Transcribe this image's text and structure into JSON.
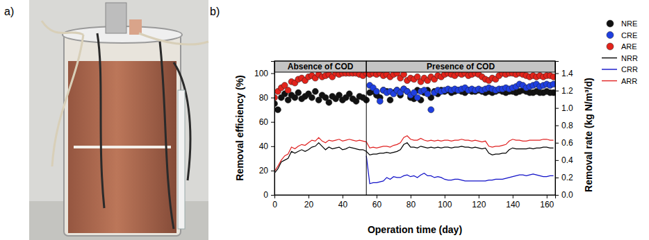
{
  "panel_labels": [
    "a)",
    "b)"
  ],
  "chart_data": {
    "type": "scatter",
    "x_label": "Operation time (day)",
    "y_label": "Removal efficiency (%)",
    "y2_label": "Removal rate (kg N/m³/d)",
    "xlim": [
      0,
      165
    ],
    "xticks": [
      0,
      20,
      40,
      60,
      80,
      100,
      120,
      140,
      160
    ],
    "ylim": [
      0,
      110
    ],
    "yticks": [
      0,
      20,
      40,
      60,
      80,
      100
    ],
    "y2lim": [
      0,
      1.54
    ],
    "y2ticks": [
      {
        "value": 0,
        "label": "0.0"
      },
      0.2,
      0.4,
      0.6,
      0.8,
      {
        "value": 1,
        "label": "1.0"
      },
      1.2,
      1.4
    ],
    "grid": false,
    "legend": "upper right",
    "annotations": [
      {
        "text": "Absence of COD",
        "x": [
          0,
          54
        ]
      },
      {
        "text": "Presence of COD",
        "x": [
          54,
          165
        ]
      }
    ],
    "x": [
      0,
      2,
      4,
      6,
      8,
      10,
      12,
      14,
      16,
      18,
      20,
      22,
      24,
      26,
      28,
      30,
      32,
      34,
      36,
      38,
      40,
      42,
      44,
      46,
      48,
      50,
      52,
      54,
      56,
      58,
      60,
      62,
      64,
      66,
      68,
      70,
      72,
      74,
      76,
      78,
      80,
      82,
      84,
      86,
      88,
      90,
      92,
      94,
      96,
      98,
      100,
      102,
      104,
      106,
      108,
      110,
      112,
      114,
      116,
      118,
      120,
      122,
      124,
      126,
      128,
      130,
      132,
      134,
      136,
      138,
      140,
      142,
      144,
      146,
      148,
      150,
      152,
      154,
      156,
      158,
      160,
      162,
      164
    ],
    "series": [
      {
        "name": "NRE",
        "type": "scatter",
        "marker": "circle",
        "color": "#111111",
        "values": [
          75,
          70,
          80,
          83,
          78,
          82,
          80,
          84,
          79,
          81,
          83,
          80,
          85,
          78,
          82,
          80,
          76,
          81,
          79,
          82,
          78,
          80,
          83,
          79,
          77,
          81,
          80,
          78,
          84,
          85,
          82,
          80,
          86,
          85,
          78,
          84,
          86,
          82,
          87,
          85,
          80,
          79,
          86,
          78,
          84,
          86,
          80,
          85,
          83,
          86,
          85,
          86,
          84,
          85,
          86,
          85,
          84,
          86,
          85,
          85,
          86,
          85,
          84,
          85,
          84,
          85,
          86,
          85,
          84,
          85,
          85,
          84,
          85,
          86,
          85,
          84,
          84,
          85,
          84,
          84,
          85,
          84,
          84
        ]
      },
      {
        "name": "CRE",
        "type": "scatter",
        "marker": "circle",
        "color": "#1f3fe0",
        "values": [
          null,
          null,
          null,
          null,
          null,
          null,
          null,
          null,
          null,
          null,
          null,
          null,
          null,
          null,
          null,
          null,
          null,
          null,
          null,
          null,
          null,
          null,
          null,
          null,
          null,
          null,
          null,
          null,
          90,
          88,
          85,
          77,
          86,
          84,
          85,
          83,
          86,
          84,
          87,
          85,
          82,
          84,
          80,
          85,
          86,
          83,
          70,
          84,
          86,
          85,
          86,
          87,
          86,
          87,
          86,
          87,
          88,
          86,
          87,
          86,
          87,
          86,
          87,
          88,
          87,
          86,
          87,
          87,
          88,
          87,
          88,
          89,
          91,
          90,
          88,
          89,
          90,
          91,
          89,
          90,
          91,
          90,
          91
        ]
      },
      {
        "name": "ARE",
        "type": "scatter",
        "marker": "circle",
        "color": "#e3231b",
        "values": [
          80,
          85,
          88,
          90,
          86,
          93,
          92,
          95,
          96,
          94,
          97,
          98,
          96,
          99,
          97,
          98,
          99,
          97,
          100,
          99,
          100,
          100,
          100,
          100,
          100,
          99,
          98,
          100,
          99,
          100,
          99,
          100,
          98,
          99,
          97,
          99,
          100,
          96,
          99,
          94,
          96,
          95,
          97,
          93,
          96,
          94,
          97,
          95,
          98,
          97,
          99,
          100,
          99,
          98,
          100,
          99,
          100,
          98,
          99,
          100,
          99,
          97,
          95,
          94,
          96,
          95,
          98,
          100,
          99,
          100,
          100,
          99,
          100,
          99,
          98,
          97,
          98,
          97,
          98,
          97,
          98,
          98,
          97
        ]
      },
      {
        "name": "NRR",
        "type": "line",
        "line_style": "solid",
        "axis": "y2",
        "color": "#000000",
        "values": [
          0.25,
          0.3,
          0.38,
          0.4,
          0.42,
          0.5,
          0.48,
          0.5,
          0.52,
          0.5,
          0.52,
          0.55,
          0.56,
          0.6,
          0.56,
          0.52,
          0.55,
          0.53,
          0.54,
          0.55,
          0.52,
          0.53,
          0.55,
          0.54,
          0.53,
          0.52,
          0.52,
          0.5,
          0.46,
          0.47,
          0.47,
          0.48,
          0.48,
          0.49,
          0.48,
          0.49,
          0.5,
          0.52,
          0.58,
          0.6,
          0.55,
          0.55,
          0.54,
          0.56,
          0.55,
          0.54,
          0.55,
          0.54,
          0.55,
          0.54,
          0.55,
          0.55,
          0.54,
          0.55,
          0.55,
          0.56,
          0.55,
          0.55,
          0.54,
          0.55,
          0.54,
          0.53,
          0.54,
          0.48,
          0.46,
          0.47,
          0.47,
          0.48,
          0.48,
          0.52,
          0.54,
          0.53,
          0.53,
          0.53,
          0.53,
          0.54,
          0.53,
          0.54,
          0.54,
          0.55,
          0.55,
          0.54,
          0.54
        ]
      },
      {
        "name": "CRR",
        "type": "line",
        "line_style": "solid",
        "axis": "y2",
        "color": "#1010c8",
        "values": [
          null,
          null,
          null,
          null,
          null,
          null,
          null,
          null,
          null,
          null,
          null,
          null,
          null,
          null,
          null,
          null,
          null,
          null,
          null,
          null,
          null,
          null,
          null,
          null,
          null,
          null,
          null,
          0.45,
          0.13,
          0.14,
          0.14,
          0.15,
          0.16,
          0.2,
          0.18,
          0.21,
          0.2,
          0.2,
          0.22,
          0.23,
          0.21,
          0.22,
          0.2,
          0.23,
          0.25,
          0.22,
          0.22,
          0.2,
          0.21,
          0.2,
          0.18,
          0.17,
          0.17,
          0.18,
          0.18,
          0.17,
          0.16,
          0.16,
          0.16,
          0.16,
          0.16,
          0.16,
          0.16,
          0.17,
          0.17,
          0.18,
          0.18,
          0.18,
          0.19,
          0.2,
          0.21,
          0.22,
          0.23,
          0.23,
          0.22,
          0.23,
          0.24,
          0.23,
          0.22,
          0.21,
          0.21,
          0.22,
          0.22
        ]
      },
      {
        "name": "ARR",
        "type": "line",
        "line_style": "solid",
        "axis": "y2",
        "color": "#e02020",
        "values": [
          0.27,
          0.33,
          0.4,
          0.45,
          0.47,
          0.55,
          0.53,
          0.56,
          0.58,
          0.57,
          0.6,
          0.63,
          0.62,
          0.66,
          0.62,
          0.6,
          0.63,
          0.62,
          0.63,
          0.64,
          0.62,
          0.63,
          0.64,
          0.63,
          0.62,
          0.63,
          0.62,
          0.61,
          0.54,
          0.55,
          0.54,
          0.55,
          0.56,
          0.56,
          0.55,
          0.57,
          0.58,
          0.6,
          0.66,
          0.68,
          0.64,
          0.63,
          0.63,
          0.65,
          0.63,
          0.62,
          0.63,
          0.62,
          0.63,
          0.62,
          0.63,
          0.63,
          0.62,
          0.63,
          0.63,
          0.64,
          0.63,
          0.63,
          0.62,
          0.63,
          0.62,
          0.61,
          0.62,
          0.56,
          0.55,
          0.56,
          0.56,
          0.57,
          0.58,
          0.62,
          0.64,
          0.63,
          0.63,
          0.62,
          0.62,
          0.63,
          0.63,
          0.63,
          0.63,
          0.64,
          0.64,
          0.63,
          0.63
        ]
      }
    ]
  }
}
